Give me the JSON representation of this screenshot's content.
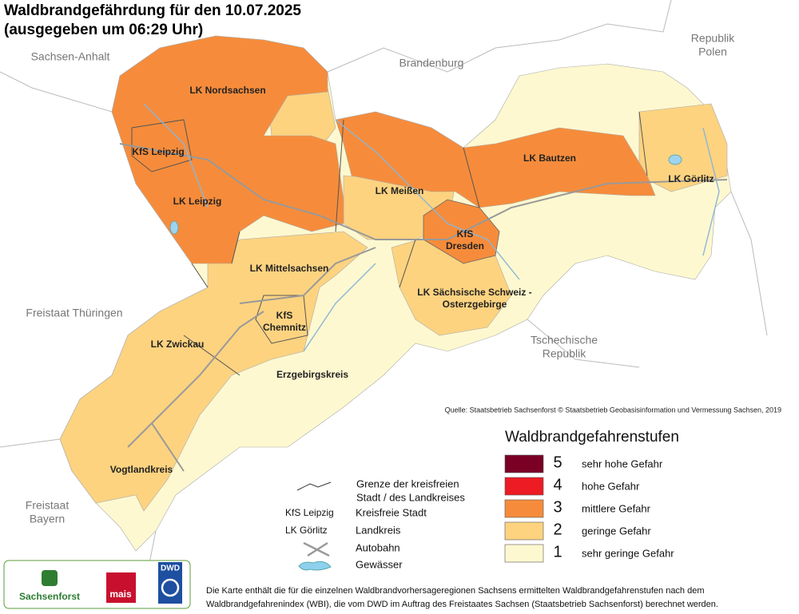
{
  "header": {
    "title": "Waldbrandgefährdung  für den  10.07.2025",
    "subtitle": "(ausgegeben um 06:29 Uhr)"
  },
  "neighbors": [
    {
      "lines": [
        "Sachsen-Anhalt"
      ]
    },
    {
      "lines": [
        "Brandenburg"
      ]
    },
    {
      "lines": [
        "Republik",
        "Polen"
      ]
    },
    {
      "lines": [
        "Freistaat Thüringen"
      ]
    },
    {
      "lines": [
        "Tschechische",
        "Republik"
      ]
    },
    {
      "lines": [
        "Freistaat",
        "Bayern"
      ]
    }
  ],
  "districts": [
    {
      "lines": [
        "LK Nordsachsen"
      ]
    },
    {
      "lines": [
        "KfS Leipzig"
      ]
    },
    {
      "lines": [
        "LK Leipzig"
      ]
    },
    {
      "lines": [
        "LK Meißen"
      ]
    },
    {
      "lines": [
        "LK Bautzen"
      ]
    },
    {
      "lines": [
        "LK Görlitz"
      ]
    },
    {
      "lines": [
        "KfS",
        "Dresden"
      ]
    },
    {
      "lines": [
        "LK Mittelsachsen"
      ]
    },
    {
      "lines": [
        "LK Sächsische Schweiz -",
        "Osterzgebirge"
      ]
    },
    {
      "lines": [
        "KfS",
        "Chemnitz"
      ]
    },
    {
      "lines": [
        "LK Zwickau"
      ]
    },
    {
      "lines": [
        "Erzgebirgskreis"
      ]
    },
    {
      "lines": [
        "Vogtlandkreis"
      ]
    }
  ],
  "source": "Quelle: Staatsbetrieb Sachsenforst  © Staatsbetrieb Geobasisinformation und Vermessung Sachsen, 2019",
  "legend": {
    "title": "Waldbrandgefahrenstufen",
    "levels": [
      {
        "level": 5,
        "label": "sehr hohe Gefahr",
        "color": "#7a0026"
      },
      {
        "level": 4,
        "label": "hohe Gefahr",
        "color": "#ed1c24"
      },
      {
        "level": 3,
        "label": "mittlere Gefahr",
        "color": "#f68c3b"
      },
      {
        "level": 2,
        "label": "geringe Gefahr",
        "color": "#fdd380"
      },
      {
        "level": 1,
        "label": "sehr geringe Gefahr",
        "color": "#fef8d0"
      }
    ]
  },
  "key": {
    "boundary": [
      "Grenze der kreisfreien",
      "Stadt / des Landkreises"
    ],
    "city_example": "KfS Leipzig",
    "city": "Kreisfreie Stadt",
    "district_example": "LK Görlitz",
    "district": "Landkreis",
    "motorway": "Autobahn",
    "water": "Gewässer"
  },
  "logos": [
    "Sachsenforst",
    "mais",
    "DWD"
  ],
  "footnote": [
    "Die Karte enthält die für die einzelnen Waldbrandvorhersageregionen Sachsens ermittelten Waldbrandgefahrenstufen nach dem",
    "Waldbrandgefahrenindex (WBI), die vom DWD im Auftrag des Freistaates Sachsen (Staatsbetrieb Sachsenforst) berechnet werden."
  ]
}
